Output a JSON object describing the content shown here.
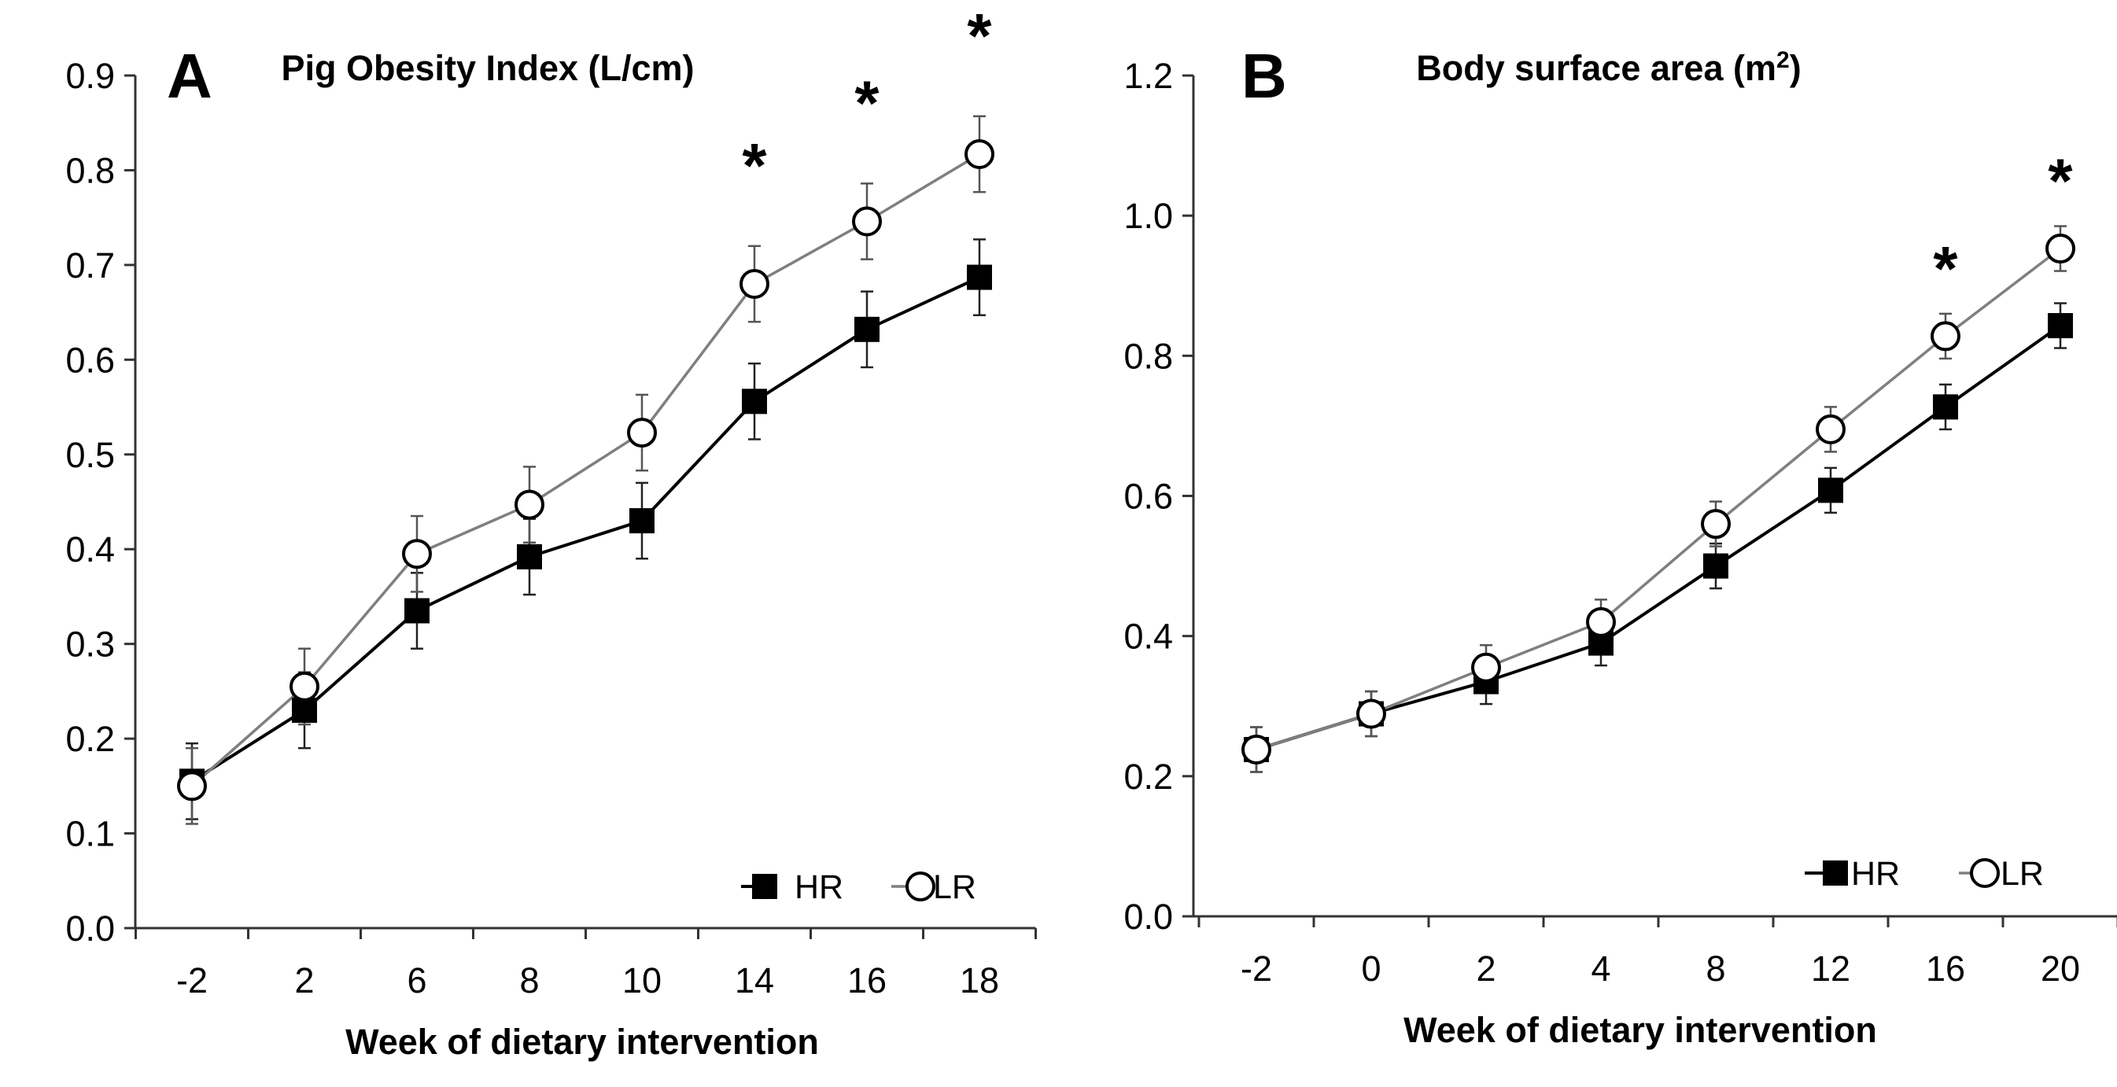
{
  "chart_data": [
    {
      "type": "line",
      "panel": "A",
      "title": "Pig Obesity Index (L/cm)",
      "title_suffix": "",
      "xlabel": "Week of dietary intervention",
      "ylabel": "",
      "categories": [
        "-2",
        "2",
        "6",
        "8",
        "10",
        "14",
        "16",
        "18"
      ],
      "ylim": [
        0,
        0.9
      ],
      "yticks": [
        0,
        0.1,
        0.2,
        0.3,
        0.4,
        0.5,
        0.6,
        0.7,
        0.8,
        0.9
      ],
      "ytick_labels": [
        "0.0",
        "0.1",
        "0.2",
        "0.3",
        "0.4",
        "0.5",
        "0.6",
        "0.7",
        "0.8",
        "0.9"
      ],
      "grid": false,
      "legend_position": "bottom-right",
      "series": [
        {
          "name": "HR",
          "marker": "filled-square",
          "color": "#000000",
          "values": [
            0.155,
            0.23,
            0.335,
            0.392,
            0.43,
            0.556,
            0.632,
            0.687
          ],
          "errors": [
            0.04,
            0.04,
            0.04,
            0.04,
            0.04,
            0.04,
            0.04,
            0.04
          ]
        },
        {
          "name": "LR",
          "marker": "open-circle",
          "color": "#7f7f7f",
          "values": [
            0.15,
            0.255,
            0.395,
            0.447,
            0.523,
            0.68,
            0.746,
            0.817
          ],
          "errors": [
            0.04,
            0.04,
            0.04,
            0.04,
            0.04,
            0.04,
            0.04,
            0.04
          ]
        }
      ],
      "annotations": [
        {
          "text": "*",
          "category_index": 5
        },
        {
          "text": "*",
          "category_index": 6
        },
        {
          "text": "*",
          "category_index": 7
        }
      ]
    },
    {
      "type": "line",
      "panel": "B",
      "title": "Body surface area (m",
      "title_superscript": "2",
      "title_suffix": ")",
      "xlabel": "Week of dietary intervention",
      "ylabel": "",
      "categories": [
        "-2",
        "0",
        "2",
        "4",
        "8",
        "12",
        "16",
        "20"
      ],
      "ylim": [
        0,
        1.2
      ],
      "yticks": [
        0,
        0.2,
        0.4,
        0.6,
        0.8,
        1.0,
        1.2
      ],
      "ytick_labels": [
        "0.0",
        "0.2",
        "0.4",
        "0.6",
        "0.8",
        "1.0",
        "1.2"
      ],
      "grid": false,
      "legend_position": "bottom-right",
      "series": [
        {
          "name": "HR",
          "marker": "filled-square",
          "color": "#000000",
          "values": [
            0.238,
            0.289,
            0.335,
            0.39,
            0.5,
            0.608,
            0.727,
            0.843
          ],
          "errors": [
            0.032,
            0.032,
            0.032,
            0.032,
            0.032,
            0.032,
            0.032,
            0.032
          ]
        },
        {
          "name": "LR",
          "marker": "open-circle",
          "color": "#7f7f7f",
          "values": [
            0.238,
            0.289,
            0.355,
            0.42,
            0.56,
            0.695,
            0.828,
            0.953
          ],
          "errors": [
            0.032,
            0.032,
            0.032,
            0.032,
            0.032,
            0.032,
            0.032,
            0.032
          ]
        }
      ],
      "annotations": [
        {
          "text": "*",
          "category_index": 6
        },
        {
          "text": "*",
          "category_index": 7
        }
      ]
    }
  ]
}
